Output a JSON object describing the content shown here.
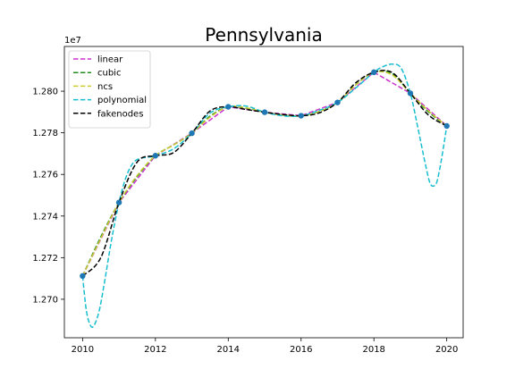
{
  "chart_data": {
    "type": "line",
    "title": "Pennsylvania",
    "xlabel": "",
    "ylabel": "",
    "y_offset_label": "1e7",
    "xlim": [
      2009.5,
      2020.45
    ],
    "ylim": [
      12.6815,
      12.8215
    ],
    "x_ticks": [
      2010,
      2012,
      2014,
      2016,
      2018,
      2020
    ],
    "x_tick_labels": [
      "2010",
      "2012",
      "2014",
      "2016",
      "2018",
      "2020"
    ],
    "y_ticks": [
      12.7,
      12.72,
      12.74,
      12.76,
      12.78,
      12.8
    ],
    "y_tick_labels": [
      "1.270",
      "1.272",
      "1.274",
      "1.276",
      "1.278",
      "1.280"
    ],
    "grid": false,
    "legend_position": "top-left",
    "data_points": {
      "x": [
        2010,
        2011,
        2012,
        2013,
        2014,
        2015,
        2016,
        2017,
        2018,
        2019,
        2020
      ],
      "y": [
        12.7112,
        12.7465,
        12.769,
        12.7798,
        12.7925,
        12.7899,
        12.7882,
        12.7946,
        12.8091,
        12.799,
        12.7833
      ],
      "color": "#1f77b4"
    },
    "series": [
      {
        "name": "linear",
        "color": "#cc33cc",
        "x": [
          2010,
          2011,
          2012,
          2013,
          2014,
          2015,
          2016,
          2017,
          2018,
          2019,
          2020
        ],
        "y": [
          12.7112,
          12.7465,
          12.769,
          12.7798,
          12.7925,
          12.7899,
          12.7882,
          12.7946,
          12.8091,
          12.799,
          12.7833
        ]
      },
      {
        "name": "cubic",
        "color": "#228b22",
        "x": [
          2010,
          2010.5,
          2011,
          2011.5,
          2012,
          2012.5,
          2013,
          2013.5,
          2014,
          2014.5,
          2015,
          2015.5,
          2016,
          2016.5,
          2017,
          2017.5,
          2018,
          2018.5,
          2019,
          2019.5,
          2020
        ],
        "y": [
          12.7112,
          12.73,
          12.7465,
          12.759,
          12.769,
          12.7742,
          12.7798,
          12.788,
          12.7925,
          12.7918,
          12.7899,
          12.7885,
          12.7882,
          12.7903,
          12.7946,
          12.803,
          12.8091,
          12.8085,
          12.799,
          12.79,
          12.7833
        ]
      },
      {
        "name": "ncs",
        "color": "#cccc33",
        "x": [
          2010,
          2010.5,
          2011,
          2011.5,
          2012,
          2012.5,
          2013,
          2013.5,
          2014,
          2014.5,
          2015,
          2015.5,
          2016,
          2016.5,
          2017,
          2017.5,
          2018,
          2018.5,
          2019,
          2019.5,
          2020
        ],
        "y": [
          12.7112,
          12.7292,
          12.7465,
          12.7595,
          12.769,
          12.7742,
          12.7798,
          12.7875,
          12.7925,
          12.792,
          12.7899,
          12.7886,
          12.7882,
          12.7902,
          12.7946,
          12.803,
          12.8091,
          12.8078,
          12.799,
          12.7905,
          12.7833
        ]
      },
      {
        "name": "polynomial",
        "color": "#17becf",
        "x": [
          2010,
          2010.1,
          2010.2,
          2010.3,
          2010.45,
          2010.6,
          2010.8,
          2011,
          2011.2,
          2011.4,
          2011.6,
          2011.8,
          2012,
          2012.5,
          2013,
          2013.5,
          2014,
          2014.5,
          2015,
          2015.5,
          2016,
          2016.5,
          2017,
          2017.5,
          2018,
          2018.25,
          2018.5,
          2018.75,
          2019,
          2019.2,
          2019.4,
          2019.55,
          2019.7,
          2019.8,
          2019.9,
          2020
        ],
        "y": [
          12.7112,
          12.695,
          12.688,
          12.687,
          12.694,
          12.708,
          12.729,
          12.7465,
          12.759,
          12.7658,
          12.7678,
          12.7683,
          12.769,
          12.7723,
          12.7798,
          12.7895,
          12.7925,
          12.7928,
          12.7899,
          12.7882,
          12.7882,
          12.7908,
          12.7946,
          12.8015,
          12.8091,
          12.8118,
          12.813,
          12.811,
          12.799,
          12.783,
          12.766,
          12.7555,
          12.7553,
          12.762,
          12.772,
          12.7833
        ]
      },
      {
        "name": "fakenodes",
        "color": "#000000",
        "x": [
          2010,
          2010.5,
          2011,
          2011.5,
          2012,
          2012.5,
          2013,
          2013.5,
          2014,
          2014.5,
          2015,
          2015.5,
          2016,
          2016.5,
          2017,
          2017.5,
          2018,
          2018.5,
          2019,
          2019.5,
          2020
        ],
        "y": [
          12.7112,
          12.72,
          12.7465,
          12.766,
          12.769,
          12.7705,
          12.7798,
          12.7905,
          12.7925,
          12.7912,
          12.7899,
          12.7888,
          12.7882,
          12.7896,
          12.7946,
          12.804,
          12.8091,
          12.809,
          12.799,
          12.7885,
          12.7833
        ]
      }
    ]
  }
}
